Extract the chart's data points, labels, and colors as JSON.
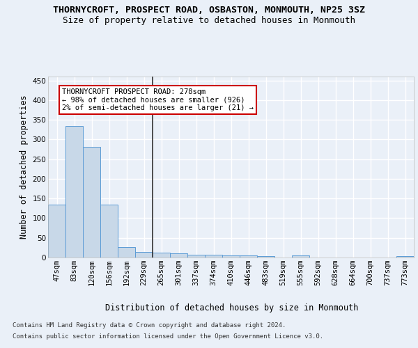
{
  "title": "THORNYCROFT, PROSPECT ROAD, OSBASTON, MONMOUTH, NP25 3SZ",
  "subtitle": "Size of property relative to detached houses in Monmouth",
  "xlabel": "Distribution of detached houses by size in Monmouth",
  "ylabel": "Number of detached properties",
  "footer_line1": "Contains HM Land Registry data © Crown copyright and database right 2024.",
  "footer_line2": "Contains public sector information licensed under the Open Government Licence v3.0.",
  "categories": [
    "47sqm",
    "83sqm",
    "120sqm",
    "156sqm",
    "192sqm",
    "229sqm",
    "265sqm",
    "301sqm",
    "337sqm",
    "374sqm",
    "410sqm",
    "446sqm",
    "483sqm",
    "519sqm",
    "555sqm",
    "592sqm",
    "628sqm",
    "664sqm",
    "700sqm",
    "737sqm",
    "773sqm"
  ],
  "values": [
    135,
    335,
    282,
    135,
    27,
    15,
    13,
    10,
    7,
    7,
    5,
    5,
    3,
    0,
    5,
    0,
    0,
    0,
    0,
    0,
    3
  ],
  "bar_color": "#c8d8e8",
  "bar_edge_color": "#5b9bd5",
  "highlight_bar_index": 5,
  "highlight_line_color": "#333333",
  "annotation_text": "THORNYCROFT PROSPECT ROAD: 278sqm\n← 98% of detached houses are smaller (926)\n2% of semi-detached houses are larger (21) →",
  "annotation_box_color": "#ffffff",
  "annotation_box_edge": "#cc0000",
  "ylim": [
    0,
    460
  ],
  "yticks": [
    0,
    50,
    100,
    150,
    200,
    250,
    300,
    350,
    400,
    450
  ],
  "bg_color": "#eaf0f8",
  "plot_bg_color": "#eaf0f8",
  "grid_color": "#ffffff",
  "title_fontsize": 9.5,
  "subtitle_fontsize": 9,
  "tick_fontsize": 7.5,
  "ylabel_fontsize": 8.5,
  "xlabel_fontsize": 8.5,
  "footer_fontsize": 6.5
}
